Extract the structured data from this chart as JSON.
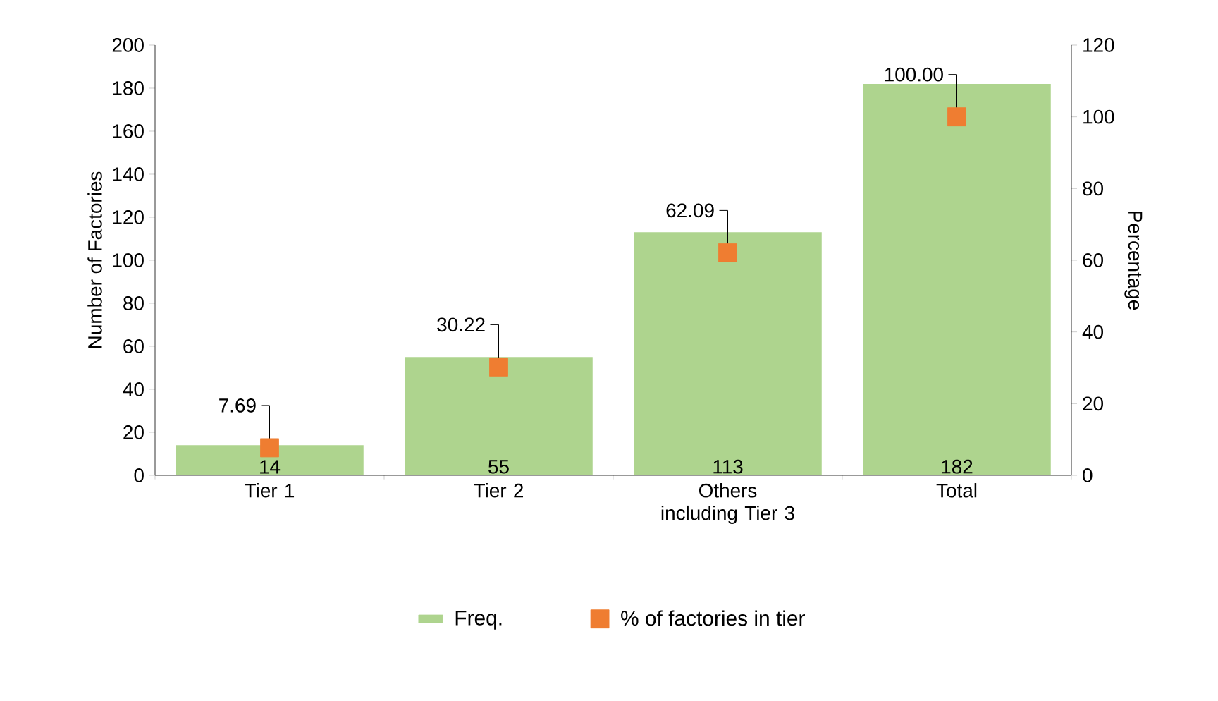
{
  "chart_data": {
    "type": "bar",
    "categories": [
      "Tier 1",
      "Tier 2",
      "Others including Tier 3",
      "Total"
    ],
    "ylabel": "Number of Factories",
    "y2label": "Percentage",
    "ylim": [
      0,
      200
    ],
    "yticks": [
      0,
      20,
      40,
      60,
      80,
      100,
      120,
      140,
      160,
      180,
      200
    ],
    "y2lim": [
      0,
      120
    ],
    "y2ticks": [
      0,
      20,
      40,
      60,
      80,
      100,
      120
    ],
    "legend": "bottom",
    "grid": false,
    "series": [
      {
        "name": "Freq.",
        "type": "bar",
        "color": "#aed48e",
        "values": [
          14,
          55,
          113,
          182
        ],
        "value_labels": [
          "14",
          "55",
          "113",
          "182"
        ]
      },
      {
        "name": "% of factories in tier",
        "type": "scatter",
        "axis": "y2",
        "marker": "square",
        "color": "#ef7d31",
        "values": [
          7.69,
          30.22,
          62.09,
          100.0
        ],
        "value_labels": [
          "7.69",
          "30.22",
          "62.09",
          "100.00"
        ]
      }
    ]
  }
}
